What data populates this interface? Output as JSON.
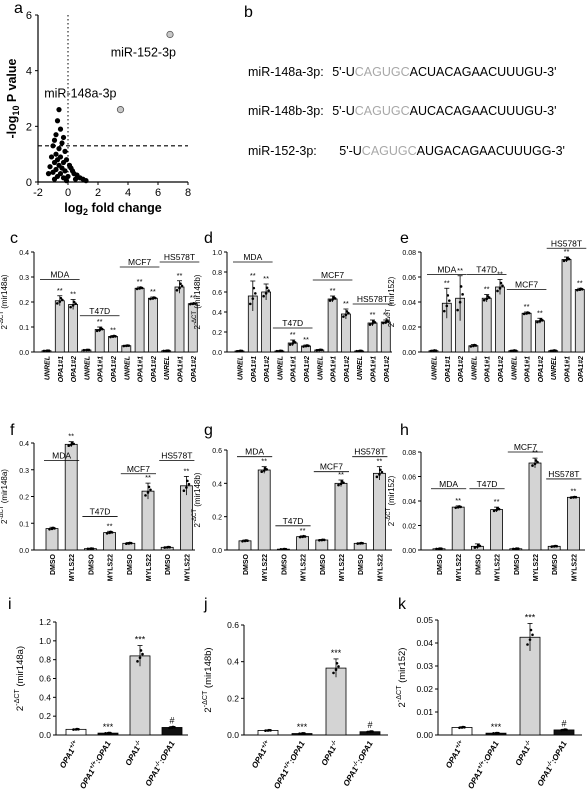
{
  "panel_letters": {
    "a": "a",
    "b": "b",
    "c": "c",
    "d": "d",
    "e": "e",
    "f": "f",
    "g": "g",
    "h": "h",
    "i": "i",
    "j": "j",
    "k": "k"
  },
  "sequences": [
    {
      "name": "miR-148a-3p:",
      "prefix": "5'-U",
      "seed": "CAGUGC",
      "rest": "ACUACAGAACUUUGU-3'"
    },
    {
      "name": "miR-148b-3p:",
      "prefix": "5'-U",
      "seed": "CAGUGC",
      "rest": "AUCACAGAACUUUGU-3'"
    },
    {
      "name": "miR-152-3p:",
      "prefix": "5'-U",
      "seed": "CAGUGC",
      "rest": "AUGACAGAACUUUGG-3'"
    }
  ],
  "colors": {
    "bar_fill": "#d4d4d4",
    "dark_fill": "#111111",
    "highlight_point": "#c8c8c8",
    "grey_seq": "#a8a8a8"
  },
  "chart_data": [
    {
      "id": "a",
      "type": "scatter",
      "xlabel": "log2 fold change",
      "ylabel": "-log10 P value",
      "xlim": [
        -2,
        8
      ],
      "ylim": [
        0,
        6
      ],
      "xticks": [
        -2,
        0,
        2,
        4,
        6,
        8
      ],
      "yticks": [
        0,
        2,
        4,
        6
      ],
      "threshold_y": 1.3,
      "threshold_x": 0,
      "points": [
        {
          "x": 6.8,
          "y": 5.3,
          "label": "miR-152-3p",
          "highlight": true
        },
        {
          "x": 3.5,
          "y": 2.6,
          "label": "miR-148a-3p",
          "highlight": true
        },
        {
          "x": -0.6,
          "y": 2.6
        },
        {
          "x": -0.7,
          "y": 2.2
        },
        {
          "x": -0.5,
          "y": 1.9
        },
        {
          "x": -0.8,
          "y": 1.7
        },
        {
          "x": -0.3,
          "y": 1.6
        },
        {
          "x": -0.9,
          "y": 1.5
        },
        {
          "x": -0.4,
          "y": 1.4
        },
        {
          "x": -1.0,
          "y": 1.3
        },
        {
          "x": -0.6,
          "y": 1.2
        },
        {
          "x": -0.2,
          "y": 1.1
        },
        {
          "x": -0.8,
          "y": 1.0
        },
        {
          "x": -1.1,
          "y": 0.9
        },
        {
          "x": -0.5,
          "y": 0.9
        },
        {
          "x": -0.1,
          "y": 0.8
        },
        {
          "x": -0.7,
          "y": 0.8
        },
        {
          "x": -0.3,
          "y": 0.7
        },
        {
          "x": -0.9,
          "y": 0.7
        },
        {
          "x": 0.1,
          "y": 0.6
        },
        {
          "x": -0.6,
          "y": 0.6
        },
        {
          "x": -1.2,
          "y": 0.55
        },
        {
          "x": -0.4,
          "y": 0.5
        },
        {
          "x": 0.2,
          "y": 0.5
        },
        {
          "x": -0.8,
          "y": 0.45
        },
        {
          "x": -0.2,
          "y": 0.4
        },
        {
          "x": 0.3,
          "y": 0.4
        },
        {
          "x": -1.0,
          "y": 0.35
        },
        {
          "x": -0.5,
          "y": 0.3
        },
        {
          "x": 0.4,
          "y": 0.3
        },
        {
          "x": 0.6,
          "y": 0.25
        },
        {
          "x": -0.7,
          "y": 0.2
        },
        {
          "x": 0.0,
          "y": 0.2
        },
        {
          "x": 0.8,
          "y": 0.15
        },
        {
          "x": -0.3,
          "y": 0.15
        },
        {
          "x": 1.0,
          "y": 0.1
        },
        {
          "x": -1.3,
          "y": 0.3
        },
        {
          "x": 0.5,
          "y": 0.1
        },
        {
          "x": -0.9,
          "y": 0.1
        },
        {
          "x": -0.1,
          "y": 0.05
        },
        {
          "x": 1.2,
          "y": 0.05
        }
      ]
    },
    {
      "id": "c",
      "type": "bar",
      "ylabel": "2-ΔCT (mir148a)",
      "ylim": [
        0,
        0.4
      ],
      "yticks": [
        "0.0",
        "0.1",
        "0.2",
        "0.3",
        "0.4"
      ],
      "categories": [
        "UNREL",
        "OPA1#1",
        "OPA1#2",
        "UNREL",
        "OPA1#1",
        "OPA1#2",
        "UNREL",
        "OPA1#1",
        "OPA1#2",
        "UNREL",
        "OPA1#1",
        "OPA1#2"
      ],
      "values": [
        0.005,
        0.205,
        0.19,
        0.008,
        0.09,
        0.062,
        0.025,
        0.255,
        0.215,
        0.005,
        0.26,
        0.193
      ],
      "errors": [
        0.001,
        0.02,
        0.02,
        0.001,
        0.01,
        0.004,
        0.002,
        0.005,
        0.005,
        0.001,
        0.025,
        0.003
      ],
      "sig": [
        "",
        "**",
        "**",
        "",
        "**",
        "**",
        "",
        "**",
        "**",
        "",
        "**",
        "**"
      ],
      "groups": [
        {
          "label": "MDA",
          "start": 0,
          "end": 2,
          "level": 0.29
        },
        {
          "label": "T47D",
          "start": 3,
          "end": 5,
          "level": 0.145
        },
        {
          "label": "MCF7",
          "start": 6,
          "end": 8,
          "level": 0.34
        },
        {
          "label": "HS578T",
          "start": 9,
          "end": 11,
          "level": 0.36
        }
      ]
    },
    {
      "id": "d",
      "type": "bar",
      "ylabel": "2-ΔCT (mir148b)",
      "ylim": [
        0,
        1.0
      ],
      "yticks": [
        "0.0",
        "0.2",
        "0.4",
        "0.6",
        "0.8",
        "1.0"
      ],
      "categories": [
        "UNREL",
        "OPA1#1",
        "OPA1#2",
        "UNREL",
        "OPA1#1",
        "OPA1#2",
        "UNREL",
        "OPA1#1",
        "OPA1#2",
        "UNREL",
        "OPA1#1",
        "OPA1#2"
      ],
      "values": [
        0.01,
        0.56,
        0.6,
        0.01,
        0.09,
        0.06,
        0.02,
        0.53,
        0.38,
        0.01,
        0.29,
        0.3
      ],
      "errors": [
        0.005,
        0.15,
        0.08,
        0.003,
        0.03,
        0.01,
        0.005,
        0.03,
        0.05,
        0.003,
        0.03,
        0.02
      ],
      "sig": [
        "",
        "**",
        "**",
        "",
        "**",
        "**",
        "",
        "**",
        "**",
        "",
        "**",
        "**"
      ],
      "groups": [
        {
          "label": "MDA",
          "start": 0,
          "end": 2,
          "level": 0.9
        },
        {
          "label": "T47D",
          "start": 3,
          "end": 5,
          "level": 0.24
        },
        {
          "label": "MCF7",
          "start": 6,
          "end": 8,
          "level": 0.72
        },
        {
          "label": "HS578T",
          "start": 9,
          "end": 11,
          "level": 0.48
        }
      ]
    },
    {
      "id": "e",
      "type": "bar",
      "ylabel": "2-ΔCT (mir152)",
      "ylim": [
        0,
        0.08
      ],
      "yticks": [
        "0.00",
        "0.02",
        "0.04",
        "0.06",
        "0.08"
      ],
      "categories": [
        "UNREL",
        "OPA1#1",
        "OPA1#2",
        "UNREL",
        "OPA1#1",
        "OPA1#2",
        "UNREL",
        "OPA1#1",
        "OPA1#2",
        "UNREL",
        "OPA1#1",
        "OPA1#2"
      ],
      "values": [
        0.001,
        0.039,
        0.043,
        0.005,
        0.043,
        0.052,
        0.001,
        0.031,
        0.025,
        0.001,
        0.074,
        0.05
      ],
      "errors": [
        0.0005,
        0.012,
        0.018,
        0.001,
        0.003,
        0.006,
        0.0005,
        0.001,
        0.002,
        0.0005,
        0.002,
        0.001
      ],
      "sig": [
        "",
        "**",
        "**",
        "",
        "**",
        "**",
        "",
        "**",
        "**",
        "",
        "**",
        "**"
      ],
      "groups": [
        {
          "label": "MDA",
          "start": 0,
          "end": 2,
          "level": 0.062
        },
        {
          "label": "T47D",
          "start": 3,
          "end": 5,
          "level": 0.062
        },
        {
          "label": "MCF7",
          "start": 6,
          "end": 8,
          "level": 0.05
        },
        {
          "label": "HS578T",
          "start": 9,
          "end": 11,
          "level": 0.083
        }
      ]
    },
    {
      "id": "f",
      "type": "bar",
      "ylabel": "2-ΔCT (mir148a)",
      "ylim": [
        0,
        0.4
      ],
      "yticks": [
        "0.0",
        "0.1",
        "0.2",
        "0.3",
        "0.4"
      ],
      "categories": [
        "DMSO",
        "MYLS22",
        "DMSO",
        "MYLS22",
        "DMSO",
        "MYLS22",
        "DMSO",
        "MYLS22"
      ],
      "values": [
        0.08,
        0.395,
        0.005,
        0.065,
        0.025,
        0.22,
        0.01,
        0.24
      ],
      "errors": [
        0.005,
        0.01,
        0.001,
        0.005,
        0.003,
        0.03,
        0.002,
        0.035
      ],
      "sig": [
        "",
        "**",
        "",
        "**",
        "",
        "**",
        "",
        "**"
      ],
      "groups": [
        {
          "label": "MDA",
          "start": 0,
          "end": 1,
          "level": 0.335
        },
        {
          "label": "T47D",
          "start": 2,
          "end": 3,
          "level": 0.125
        },
        {
          "label": "MCF7",
          "start": 4,
          "end": 5,
          "level": 0.285
        },
        {
          "label": "HS578T",
          "start": 6,
          "end": 7,
          "level": 0.335
        }
      ]
    },
    {
      "id": "g",
      "type": "bar",
      "ylabel": "2-ΔCT (mir148b)",
      "ylim": [
        0,
        0.6
      ],
      "yticks": [
        "0.0",
        "0.2",
        "0.4",
        "0.6"
      ],
      "categories": [
        "DMSO",
        "MYLS22",
        "DMSO",
        "MYLS22",
        "DMSO",
        "MYLS22",
        "DMSO",
        "MYLS22"
      ],
      "values": [
        0.055,
        0.48,
        0.005,
        0.08,
        0.06,
        0.4,
        0.04,
        0.46
      ],
      "errors": [
        0.005,
        0.02,
        0.001,
        0.005,
        0.003,
        0.02,
        0.003,
        0.04
      ],
      "sig": [
        "",
        "**",
        "",
        "**",
        "",
        "**",
        "",
        "**"
      ],
      "groups": [
        {
          "label": "MDA",
          "start": 0,
          "end": 1,
          "level": 0.56
        },
        {
          "label": "T47D",
          "start": 2,
          "end": 3,
          "level": 0.145
        },
        {
          "label": "MCF7",
          "start": 4,
          "end": 5,
          "level": 0.47
        },
        {
          "label": "HS578T",
          "start": 6,
          "end": 7,
          "level": 0.56
        }
      ]
    },
    {
      "id": "h",
      "type": "bar",
      "ylabel": "2-ΔCT (mir152)",
      "ylim": [
        0,
        0.08
      ],
      "yticks": [
        "0.00",
        "0.02",
        "0.04",
        "0.06",
        "0.08"
      ],
      "categories": [
        "DMSO",
        "MYLS22",
        "DMSO",
        "MYLS22",
        "DMSO",
        "MYLS22",
        "DMSO",
        "MYLS22"
      ],
      "values": [
        0.001,
        0.035,
        0.003,
        0.033,
        0.001,
        0.071,
        0.003,
        0.043
      ],
      "errors": [
        0.0003,
        0.001,
        0.002,
        0.002,
        0.0003,
        0.004,
        0.0005,
        0.0005
      ],
      "sig": [
        "",
        "**",
        "",
        "**",
        "",
        "**",
        "",
        "**"
      ],
      "groups": [
        {
          "label": "MDA",
          "start": 0,
          "end": 1,
          "level": 0.05
        },
        {
          "label": "T47D",
          "start": 2,
          "end": 3,
          "level": 0.05
        },
        {
          "label": "MCF7",
          "start": 4,
          "end": 5,
          "level": 0.08
        },
        {
          "label": "HS578T",
          "start": 6,
          "end": 7,
          "level": 0.058
        }
      ]
    },
    {
      "id": "i",
      "type": "bar",
      "ylabel": "2-ΔCT (mir148a)",
      "ylim": [
        0,
        1.2
      ],
      "yticks": [
        "0.0",
        "0.2",
        "0.4",
        "0.6",
        "0.8",
        "1.0",
        "1.2"
      ],
      "categories": [
        "OPA1+/+",
        "OPA1+/+:OPA1",
        "OPA1-/-",
        "OPA1-/-:OPA1"
      ],
      "values": [
        0.06,
        0.02,
        0.84,
        0.08
      ],
      "errors": [
        0.005,
        0.003,
        0.11,
        0.01
      ],
      "sig": [
        "",
        "***",
        "***",
        "#"
      ],
      "fills": [
        "white",
        "dark",
        "grey",
        "dark"
      ]
    },
    {
      "id": "j",
      "type": "bar",
      "ylabel": "2-ΔCT (mir148b)",
      "ylim": [
        0,
        0.6
      ],
      "yticks": [
        "0.0",
        "0.2",
        "0.4",
        "0.6"
      ],
      "categories": [
        "OPA1+/+",
        "OPA1+/+:OPA1",
        "OPA1-/-",
        "OPA1-/-:OPA1"
      ],
      "values": [
        0.025,
        0.008,
        0.365,
        0.018
      ],
      "errors": [
        0.003,
        0.002,
        0.05,
        0.003
      ],
      "sig": [
        "",
        "***",
        "***",
        "#"
      ],
      "fills": [
        "white",
        "dark",
        "grey",
        "dark"
      ]
    },
    {
      "id": "k",
      "type": "bar",
      "ylabel": "2-ΔCT (mir152)",
      "ylim": [
        0,
        0.05
      ],
      "yticks": [
        "0.00",
        "0.01",
        "0.02",
        "0.03",
        "0.04",
        "0.05"
      ],
      "categories": [
        "OPA1+/+",
        "OPA1+/+:OPA1",
        "OPA1-/-",
        "OPA1-/-:OPA1"
      ],
      "values": [
        0.0033,
        0.0008,
        0.0425,
        0.0022
      ],
      "errors": [
        0.0003,
        0.0001,
        0.006,
        0.0003
      ],
      "sig": [
        "",
        "***",
        "***",
        "#"
      ],
      "fills": [
        "white",
        "dark",
        "grey",
        "dark"
      ]
    }
  ]
}
